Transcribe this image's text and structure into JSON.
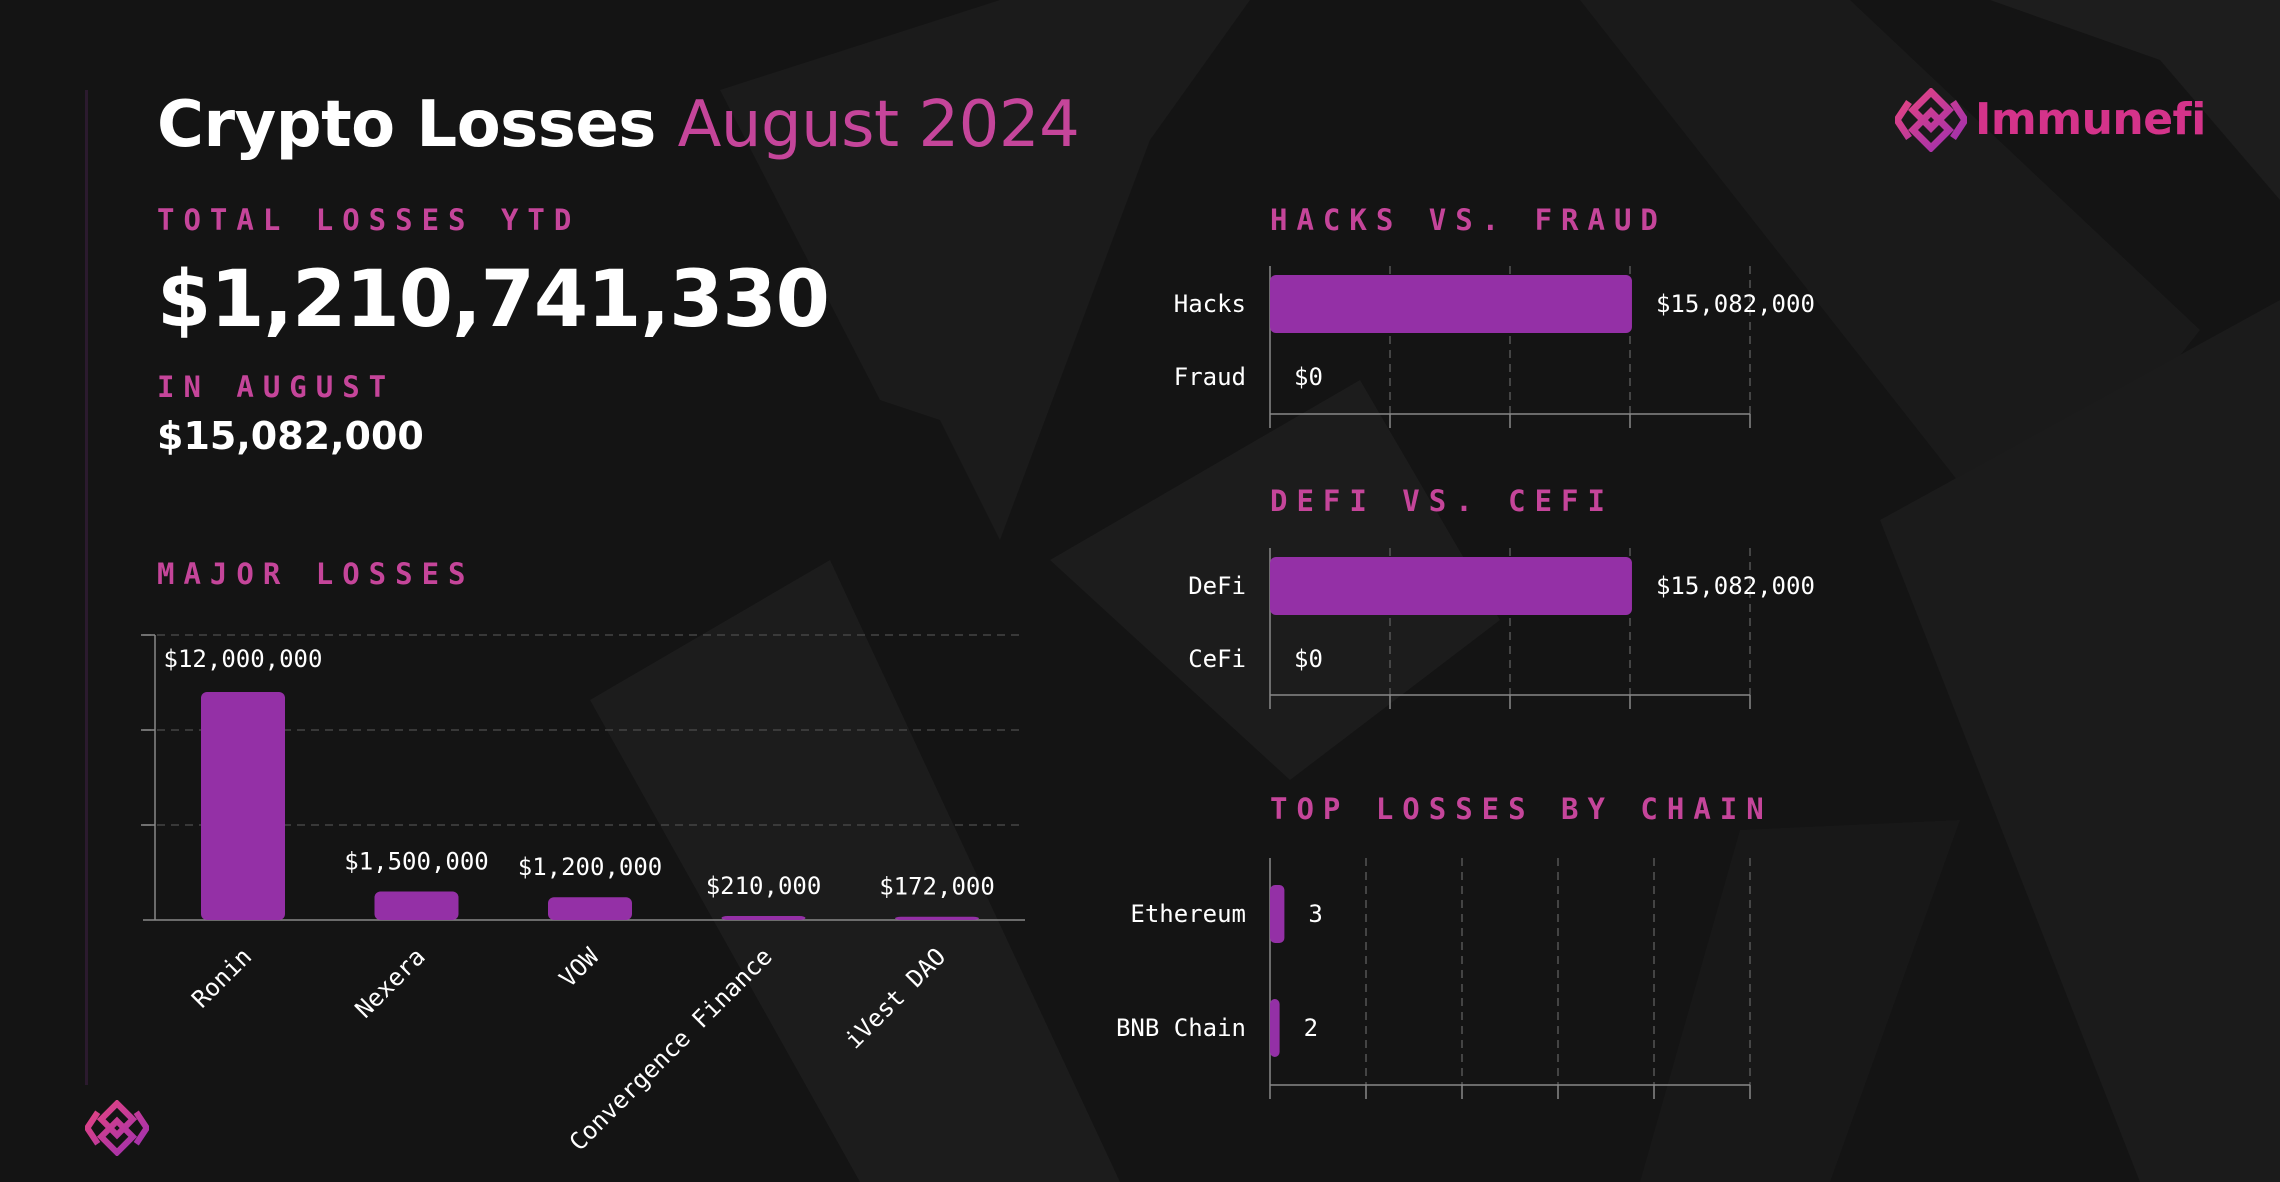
{
  "header": {
    "title_main": "Crypto Losses",
    "title_accent": "August 2024",
    "brand_name": "Immunefi"
  },
  "summary": {
    "ytd_label": "TOTAL LOSSES YTD",
    "ytd_value": "$1,210,741,330",
    "month_label": "IN AUGUST",
    "month_value": "$15,082,000"
  },
  "colors": {
    "background": "#141414",
    "accent": "#c5459a",
    "bar": "#9430a6",
    "brand": "#d4338a"
  },
  "chart_data": [
    {
      "type": "bar",
      "title": "MAJOR LOSSES",
      "categories": [
        "Ronin",
        "Nexera",
        "VOW",
        "Convergence Finance",
        "iVest DAO"
      ],
      "values": [
        12000000,
        1500000,
        1200000,
        210000,
        172000
      ],
      "labels": [
        "$12,000,000",
        "$1,500,000",
        "$1,200,000",
        "$210,000",
        "$172,000"
      ],
      "ylim": [
        0,
        15000000
      ],
      "grid": true
    },
    {
      "type": "bar",
      "orientation": "horizontal",
      "title": "HACKS VS. FRAUD",
      "categories": [
        "Hacks",
        "Fraud"
      ],
      "values": [
        15082000,
        0
      ],
      "labels": [
        "$15,082,000",
        "$0"
      ],
      "xlim": [
        0,
        20000000
      ],
      "grid": true
    },
    {
      "type": "bar",
      "orientation": "horizontal",
      "title": "DEFI VS. CEFI",
      "categories": [
        "DeFi",
        "CeFi"
      ],
      "values": [
        15082000,
        0
      ],
      "labels": [
        "$15,082,000",
        "$0"
      ],
      "xlim": [
        0,
        20000000
      ],
      "grid": true
    },
    {
      "type": "bar",
      "orientation": "horizontal",
      "title": "TOP LOSSES BY CHAIN",
      "categories": [
        "Ethereum",
        "BNB Chain"
      ],
      "values": [
        3,
        2
      ],
      "labels": [
        "3",
        "2"
      ],
      "xlim": [
        0,
        100
      ],
      "grid": true
    }
  ]
}
